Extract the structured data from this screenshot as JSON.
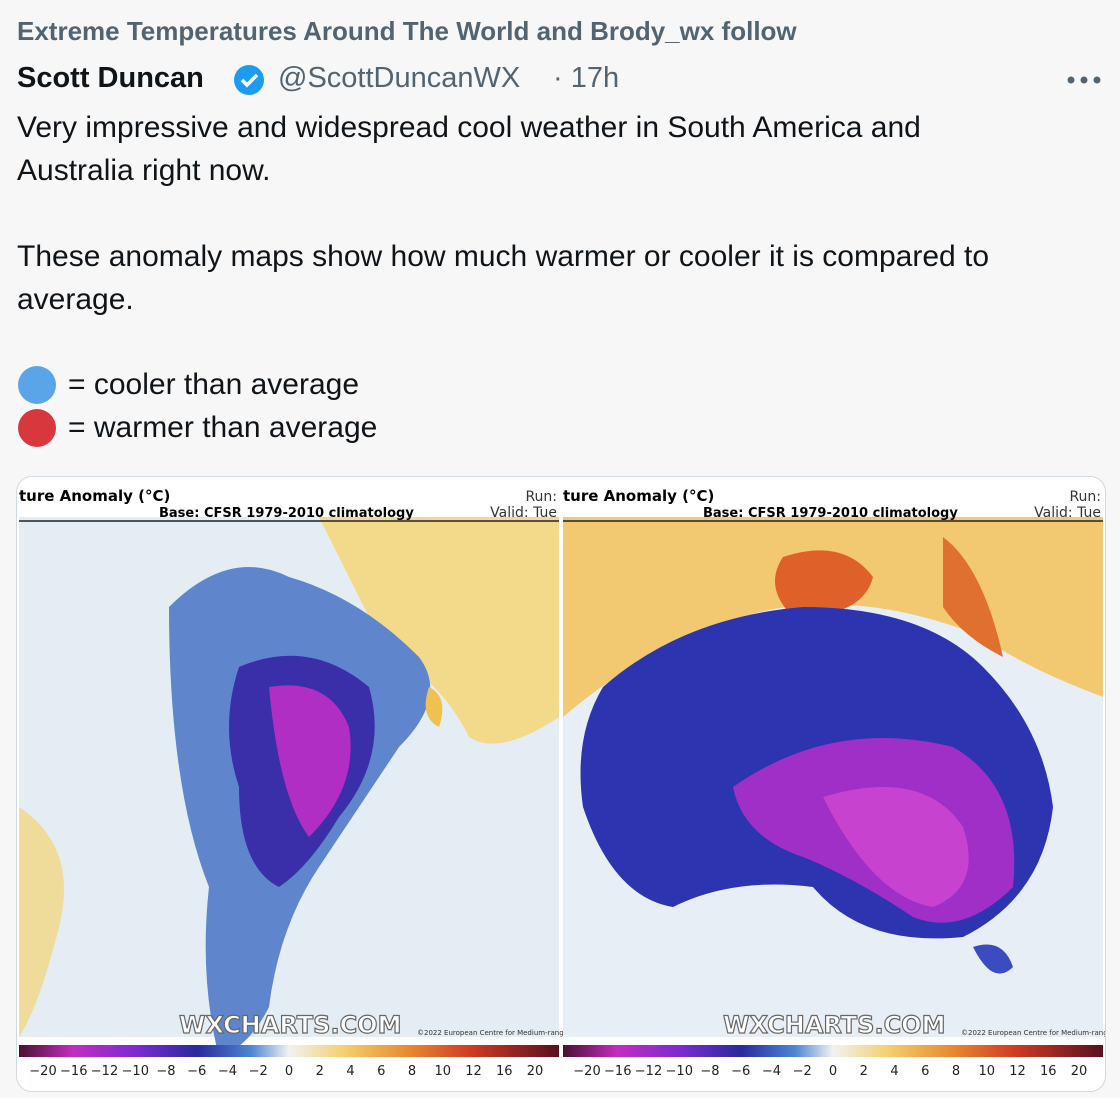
{
  "social_context": "Extreme Temperatures Around The World and Brody_wx follow",
  "author": {
    "name": "Scott Duncan",
    "handle": "@ScottDuncanWX",
    "time": "· 17h"
  },
  "paragraphs": [
    "Very impressive and widespread cool weather in South America and Australia right now.",
    "These anomaly maps show how much warmer or cooler it is compared to average."
  ],
  "legend": [
    {
      "label": "= cooler than average",
      "color": "#5aa5e8"
    },
    {
      "label": "= warmer than average",
      "color": "#d8373e"
    }
  ],
  "images": [
    {
      "title": "ture Anomaly (°C)",
      "base": "Base: CFSR 1979-2010 climatology",
      "run": "Run:",
      "valid": "Valid: Tue",
      "watermark": "WXCHARTS.COM",
      "credit": "©2022 European Centre for Medium-rang",
      "scale": [
        "−20",
        "−16",
        "−12",
        "−10",
        "−8",
        "−6",
        "−4",
        "−2",
        "0",
        "2",
        "4",
        "6",
        "8",
        "10",
        "12",
        "16",
        "20"
      ]
    },
    {
      "title": "ture Anomaly (°C)",
      "base": "Base: CFSR 1979-2010 climatology",
      "run": "Run:",
      "valid": "Valid: Tue",
      "watermark": "WXCHARTS.COM",
      "credit": "©2022 European Centre for Medium-rang",
      "scale": [
        "−20",
        "−16",
        "−12",
        "−10",
        "−8",
        "−6",
        "−4",
        "−2",
        "0",
        "2",
        "4",
        "6",
        "8",
        "10",
        "12",
        "16",
        "20"
      ]
    }
  ]
}
